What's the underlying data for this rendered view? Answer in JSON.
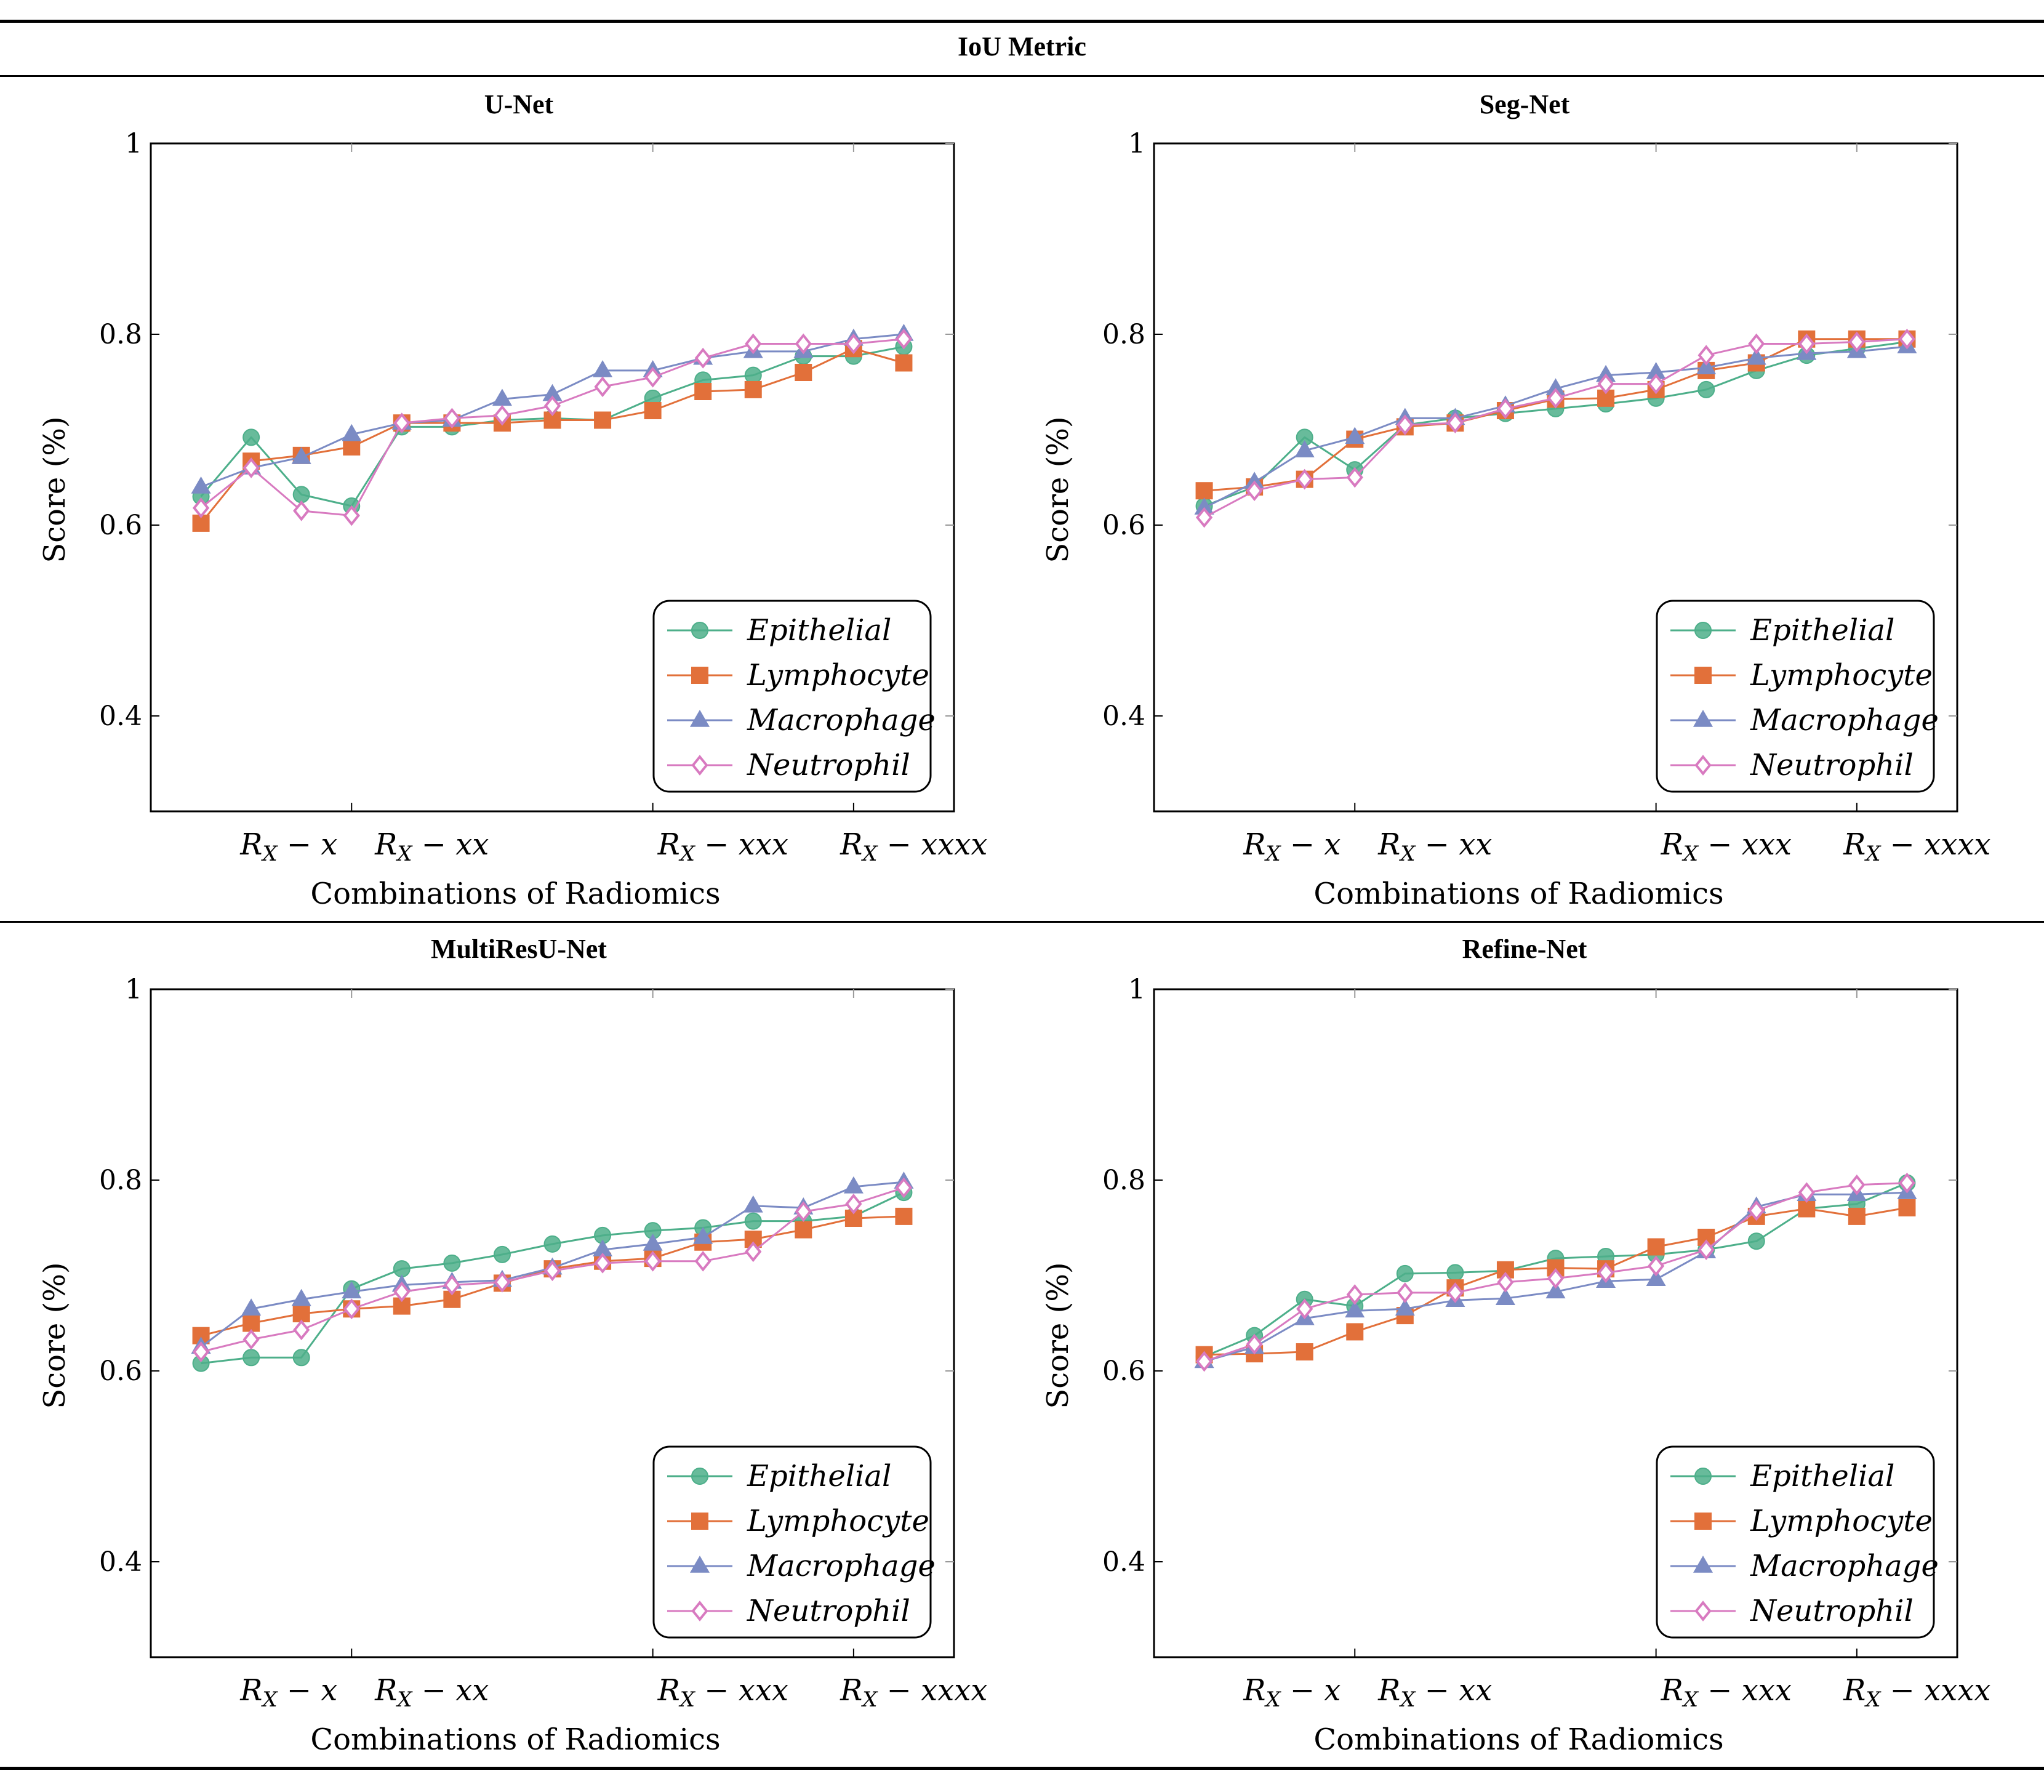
{
  "figure_title": "IoU Metric",
  "chart_data": [
    {
      "type": "line",
      "title": "U-Net",
      "xlabel": "Combinations of Radiomics",
      "ylabel": "Score (%)",
      "ylim": [
        0.3,
        1.0
      ],
      "yticks": [
        0.4,
        0.6,
        0.8,
        1
      ],
      "ytick_labels": [
        "0.4",
        "0.6",
        "0.8",
        "1"
      ],
      "xlim": [
        0,
        16
      ],
      "x": [
        1,
        2,
        3,
        4,
        5,
        6,
        7,
        8,
        9,
        10,
        11,
        12,
        13,
        14,
        15
      ],
      "xticks": [
        4,
        10,
        14
      ],
      "xtick_labels": [
        {
          "x": 2.75,
          "main": "R",
          "sub": "X",
          "rest": " − x"
        },
        {
          "x": 5.6,
          "main": "R",
          "sub": "X",
          "rest": " − xx"
        },
        {
          "x": 11.4,
          "main": "R",
          "sub": "X",
          "rest": " − xxx"
        },
        {
          "x": 15.2,
          "main": "R",
          "sub": "X",
          "rest": " − xxxx"
        }
      ],
      "legend_position": "bottom-right",
      "series": [
        {
          "name": "Epithelial",
          "values": [
            0.63,
            0.692,
            0.632,
            0.62,
            0.703,
            0.703,
            0.71,
            0.712,
            0.71,
            0.733,
            0.752,
            0.757,
            0.777,
            0.777,
            0.787
          ]
        },
        {
          "name": "Lymphocyte",
          "values": [
            0.602,
            0.667,
            0.673,
            0.682,
            0.707,
            0.707,
            0.707,
            0.71,
            0.71,
            0.72,
            0.74,
            0.742,
            0.76,
            0.785,
            0.77
          ]
        },
        {
          "name": "Macrophage",
          "values": [
            0.64,
            0.66,
            0.671,
            0.695,
            0.707,
            0.71,
            0.732,
            0.737,
            0.762,
            0.762,
            0.775,
            0.782,
            0.782,
            0.795,
            0.8
          ]
        },
        {
          "name": "Neutrophil",
          "values": [
            0.618,
            0.66,
            0.615,
            0.61,
            0.707,
            0.712,
            0.715,
            0.725,
            0.745,
            0.755,
            0.775,
            0.79,
            0.79,
            0.79,
            0.795
          ]
        }
      ]
    },
    {
      "type": "line",
      "title": "Seg-Net",
      "xlabel": "Combinations of Radiomics",
      "ylabel": "Score (%)",
      "ylim": [
        0.3,
        1.0
      ],
      "yticks": [
        0.4,
        0.6,
        0.8,
        1
      ],
      "ytick_labels": [
        "0.4",
        "0.6",
        "0.8",
        "1"
      ],
      "xlim": [
        0,
        16
      ],
      "x": [
        1,
        2,
        3,
        4,
        5,
        6,
        7,
        8,
        9,
        10,
        11,
        12,
        13,
        14,
        15
      ],
      "xticks": [
        4,
        10,
        14
      ],
      "xtick_labels": [
        {
          "x": 2.75,
          "main": "R",
          "sub": "X",
          "rest": " − x"
        },
        {
          "x": 5.6,
          "main": "R",
          "sub": "X",
          "rest": " − xx"
        },
        {
          "x": 11.4,
          "main": "R",
          "sub": "X",
          "rest": " − xxx"
        },
        {
          "x": 15.2,
          "main": "R",
          "sub": "X",
          "rest": " − xxxx"
        }
      ],
      "legend_position": "bottom-right",
      "series": [
        {
          "name": "Epithelial",
          "values": [
            0.62,
            0.64,
            0.692,
            0.658,
            0.705,
            0.712,
            0.717,
            0.722,
            0.727,
            0.733,
            0.742,
            0.762,
            0.778,
            0.785,
            0.792
          ]
        },
        {
          "name": "Lymphocyte",
          "values": [
            0.636,
            0.64,
            0.648,
            0.69,
            0.703,
            0.707,
            0.72,
            0.732,
            0.733,
            0.742,
            0.762,
            0.77,
            0.795,
            0.795,
            0.795
          ]
        },
        {
          "name": "Macrophage",
          "values": [
            0.618,
            0.645,
            0.678,
            0.692,
            0.712,
            0.712,
            0.725,
            0.743,
            0.757,
            0.76,
            0.765,
            0.775,
            0.78,
            0.782,
            0.787
          ]
        },
        {
          "name": "Neutrophil",
          "values": [
            0.608,
            0.636,
            0.648,
            0.65,
            0.705,
            0.707,
            0.722,
            0.733,
            0.748,
            0.748,
            0.778,
            0.79,
            0.79,
            0.792,
            0.795
          ]
        }
      ]
    },
    {
      "type": "line",
      "title": "MultiResU-Net",
      "xlabel": "Combinations of Radiomics",
      "ylabel": "Score (%)",
      "ylim": [
        0.3,
        1.0
      ],
      "yticks": [
        0.4,
        0.6,
        0.8,
        1
      ],
      "ytick_labels": [
        "0.4",
        "0.6",
        "0.8",
        "1"
      ],
      "xlim": [
        0,
        16
      ],
      "x": [
        1,
        2,
        3,
        4,
        5,
        6,
        7,
        8,
        9,
        10,
        11,
        12,
        13,
        14,
        15
      ],
      "xticks": [
        4,
        10,
        14
      ],
      "xtick_labels": [
        {
          "x": 2.75,
          "main": "R",
          "sub": "X",
          "rest": " − x"
        },
        {
          "x": 5.6,
          "main": "R",
          "sub": "X",
          "rest": " − xx"
        },
        {
          "x": 11.4,
          "main": "R",
          "sub": "X",
          "rest": " − xxx"
        },
        {
          "x": 15.2,
          "main": "R",
          "sub": "X",
          "rest": " − xxxx"
        }
      ],
      "legend_position": "bottom-right",
      "series": [
        {
          "name": "Epithelial",
          "values": [
            0.608,
            0.614,
            0.614,
            0.686,
            0.707,
            0.713,
            0.722,
            0.733,
            0.742,
            0.747,
            0.75,
            0.757,
            0.757,
            0.762,
            0.787
          ]
        },
        {
          "name": "Lymphocyte",
          "values": [
            0.637,
            0.65,
            0.66,
            0.665,
            0.668,
            0.675,
            0.692,
            0.707,
            0.715,
            0.718,
            0.735,
            0.738,
            0.748,
            0.76,
            0.762
          ]
        },
        {
          "name": "Macrophage",
          "values": [
            0.625,
            0.665,
            0.675,
            0.683,
            0.69,
            0.693,
            0.695,
            0.708,
            0.727,
            0.733,
            0.74,
            0.773,
            0.771,
            0.793,
            0.798
          ]
        },
        {
          "name": "Neutrophil",
          "values": [
            0.62,
            0.633,
            0.643,
            0.665,
            0.683,
            0.69,
            0.693,
            0.705,
            0.713,
            0.715,
            0.715,
            0.725,
            0.767,
            0.775,
            0.792
          ]
        }
      ]
    },
    {
      "type": "line",
      "title": "Refine-Net",
      "xlabel": "Combinations of Radiomics",
      "ylabel": "Score (%)",
      "ylim": [
        0.3,
        1.0
      ],
      "yticks": [
        0.4,
        0.6,
        0.8,
        1
      ],
      "ytick_labels": [
        "0.4",
        "0.6",
        "0.8",
        "1"
      ],
      "xlim": [
        0,
        16
      ],
      "x": [
        1,
        2,
        3,
        4,
        5,
        6,
        7,
        8,
        9,
        10,
        11,
        12,
        13,
        14,
        15
      ],
      "xticks": [
        4,
        10,
        14
      ],
      "xtick_labels": [
        {
          "x": 2.75,
          "main": "R",
          "sub": "X",
          "rest": " − x"
        },
        {
          "x": 5.6,
          "main": "R",
          "sub": "X",
          "rest": " − xx"
        },
        {
          "x": 11.4,
          "main": "R",
          "sub": "X",
          "rest": " − xxx"
        },
        {
          "x": 15.2,
          "main": "R",
          "sub": "X",
          "rest": " − xxxx"
        }
      ],
      "legend_position": "bottom-right",
      "series": [
        {
          "name": "Epithelial",
          "values": [
            0.615,
            0.637,
            0.675,
            0.668,
            0.702,
            0.703,
            0.705,
            0.718,
            0.72,
            0.722,
            0.727,
            0.736,
            0.77,
            0.775,
            0.797
          ]
        },
        {
          "name": "Lymphocyte",
          "values": [
            0.617,
            0.618,
            0.62,
            0.641,
            0.658,
            0.687,
            0.706,
            0.708,
            0.707,
            0.73,
            0.74,
            0.762,
            0.77,
            0.762,
            0.771
          ]
        },
        {
          "name": "Macrophage",
          "values": [
            0.61,
            0.625,
            0.655,
            0.663,
            0.665,
            0.674,
            0.676,
            0.683,
            0.694,
            0.696,
            0.725,
            0.772,
            0.785,
            0.785,
            0.787
          ]
        },
        {
          "name": "Neutrophil",
          "values": [
            0.61,
            0.628,
            0.665,
            0.68,
            0.682,
            0.682,
            0.693,
            0.697,
            0.703,
            0.71,
            0.727,
            0.768,
            0.787,
            0.795,
            0.797
          ]
        }
      ]
    }
  ],
  "series_styles": [
    {
      "name": "Epithelial",
      "color": "#4daf8a",
      "marker": "circle"
    },
    {
      "name": "Lymphocyte",
      "color": "#e2703a",
      "marker": "square"
    },
    {
      "name": "Macrophage",
      "color": "#7b8bc4",
      "marker": "triangle"
    },
    {
      "name": "Neutrophil",
      "color": "#d87ac0",
      "marker": "diamond"
    }
  ]
}
